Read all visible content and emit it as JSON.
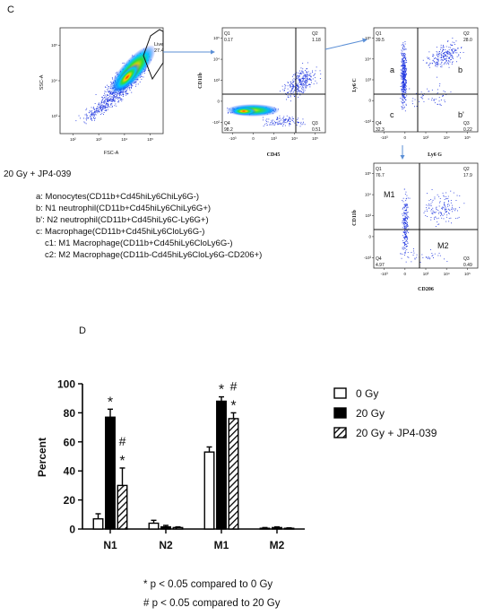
{
  "panel_c": {
    "label": "C",
    "condition": "20 Gy + JP4-039",
    "legend_lines": [
      "a: Monocytes(CD11b+Cd45hiLy6ChiLy6G-)",
      "b: N1 neutrophil(CD11b+Cd45hiLy6ChiLy6G+)",
      "b': N2 neutrophil(CD11b+Cd45hiLy6C-Ly6G+)",
      "c:  Macrophage(CD11b+Cd45hiLy6CloLy6G-)",
      "c1: M1 Macrophage(CD11b+Cd45hiLy6CloLy6G-)",
      "c2: M2 Macrophage(CD11b-Cd45hiLy6CloLy6G-CD206+)"
    ],
    "plots": [
      {
        "id": "fsc-ssc",
        "xlabel": "FSC-A",
        "ylabel": "SSC-A",
        "gate": {
          "name": "Live",
          "value": "27.4"
        },
        "ticks_x": [
          "10²",
          "10³",
          "10⁴",
          "10⁵"
        ],
        "ticks_y": [
          "10³",
          "10⁴",
          "10⁵"
        ]
      },
      {
        "id": "cd45-cd11b",
        "xlabel": "CD45",
        "ylabel": "CD11b",
        "quadrants": {
          "Q1": "0.17",
          "Q2": "1.18",
          "Q3": "0.51",
          "Q4": "98.2"
        },
        "ticks_x": [
          "-10³",
          "0",
          "10³",
          "10⁴",
          "10⁵"
        ],
        "ticks_y": [
          "-10²",
          "0",
          "10³",
          "10⁴",
          "10⁵"
        ]
      },
      {
        "id": "ly6g-ly6c",
        "xlabel": "Ly6 G",
        "ylabel": "Ly6 C",
        "quadrants": {
          "Q1": "39.5",
          "Q2": "28.0",
          "Q3": "0.22",
          "Q4": "32.3"
        },
        "annotations": [
          "a",
          "b",
          "b'",
          "c"
        ],
        "ticks_x": [
          "-10³",
          "0",
          "10³",
          "10⁴",
          "10⁵"
        ],
        "ticks_y": [
          "-10³",
          "0",
          "10³",
          "10⁴",
          "10⁵"
        ]
      },
      {
        "id": "cd206-cd11b",
        "xlabel": "CD206",
        "ylabel": "CD11b",
        "quadrants": {
          "Q1": "76.7",
          "Q2": "17.9",
          "Q3": "0.49",
          "Q4": "4.97"
        },
        "annotations": [
          "M1",
          "M2"
        ],
        "ticks_x": [
          "-10³",
          "0",
          "10³",
          "10⁴",
          "10⁵"
        ],
        "ticks_y": [
          "-10³",
          "0",
          "10³",
          "10⁴",
          "10⁵"
        ]
      }
    ]
  },
  "panel_d": {
    "label": "D",
    "footnotes": [
      "* p < 0.05 compared to 0 Gy",
      "# p < 0.05 compared to 20 Gy"
    ]
  },
  "chart_data": {
    "type": "bar",
    "categories": [
      "N1",
      "N2",
      "M1",
      "M2"
    ],
    "ylabel": "Percent",
    "ylim": [
      0,
      100
    ],
    "yticks": [
      0,
      20,
      40,
      60,
      80,
      100
    ],
    "legend_position": "right",
    "series": [
      {
        "name": "0 Gy",
        "fill": "white",
        "values": [
          7,
          4,
          53,
          0.5
        ],
        "errors": [
          3.5,
          2,
          3.5,
          0.5
        ]
      },
      {
        "name": "20 Gy",
        "fill": "black",
        "values": [
          77,
          1.5,
          88,
          1
        ],
        "errors": [
          5.5,
          1,
          3,
          0.5
        ]
      },
      {
        "name": "20 Gy + JP4-039",
        "fill": "hatch",
        "values": [
          30,
          1,
          76,
          0.5
        ],
        "errors": [
          12,
          0.5,
          4,
          0.3
        ]
      }
    ],
    "significance": [
      {
        "category": "N1",
        "series": "20 Gy",
        "marks": [
          "*"
        ]
      },
      {
        "category": "N1",
        "series": "20 Gy + JP4-039",
        "marks": [
          "#",
          "*"
        ]
      },
      {
        "category": "M1",
        "series": "20 Gy",
        "marks": [
          "*"
        ]
      },
      {
        "category": "M1",
        "series": "20 Gy + JP4-039",
        "marks": [
          "#",
          "*"
        ]
      }
    ]
  }
}
